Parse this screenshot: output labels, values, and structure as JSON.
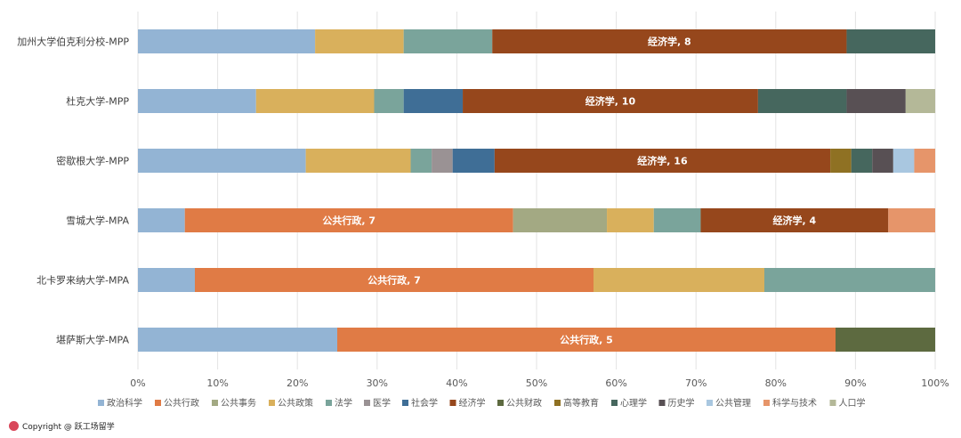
{
  "chart_data": {
    "type": "bar",
    "orientation": "horizontal",
    "stacked": "percent",
    "categories": [
      "加州大学伯克利分校-MPP",
      "杜克大学-MPP",
      "密歇根大学-MPP",
      "雪城大学-MPA",
      "北卡罗来纳大学-MPA",
      "堪萨斯大学-MPA"
    ],
    "xlim": [
      0,
      100
    ],
    "xticks": [
      "0%",
      "10%",
      "20%",
      "30%",
      "40%",
      "50%",
      "60%",
      "70%",
      "80%",
      "90%",
      "100%"
    ],
    "grid": true,
    "legend_placement": "bottom",
    "series": [
      {
        "name": "政治科学",
        "color": "#93b4d4",
        "values": [
          4,
          4,
          8,
          1,
          1,
          2
        ]
      },
      {
        "name": "公共行政",
        "color": "#e07b45",
        "values": [
          0,
          0,
          0,
          7,
          7,
          5
        ]
      },
      {
        "name": "公共事务",
        "color": "#a3a983",
        "values": [
          0,
          0,
          0,
          2,
          0,
          0
        ]
      },
      {
        "name": "公共政策",
        "color": "#d9b05c",
        "values": [
          2,
          4,
          5,
          1,
          3,
          0
        ]
      },
      {
        "name": "法学",
        "color": "#7aa49b",
        "values": [
          2,
          1,
          1,
          1,
          3,
          0
        ]
      },
      {
        "name": "医学",
        "color": "#9a9294",
        "values": [
          0,
          0,
          1,
          0,
          0,
          0
        ]
      },
      {
        "name": "社会学",
        "color": "#3f6e96",
        "values": [
          0,
          2,
          2,
          0,
          0,
          0
        ]
      },
      {
        "name": "经济学",
        "color": "#96471c",
        "values": [
          8,
          10,
          16,
          4,
          0,
          0
        ]
      },
      {
        "name": "公共财政",
        "color": "#5d6a40",
        "values": [
          0,
          0,
          0,
          0,
          0,
          1
        ]
      },
      {
        "name": "高等教育",
        "color": "#8f7123",
        "values": [
          0,
          0,
          1,
          0,
          0,
          0
        ]
      },
      {
        "name": "心理学",
        "color": "#46675e",
        "values": [
          2,
          3,
          1,
          0,
          0,
          0
        ]
      },
      {
        "name": "历史学",
        "color": "#585054",
        "values": [
          0,
          2,
          1,
          0,
          0,
          0
        ]
      },
      {
        "name": "公共管理",
        "color": "#a9c7e0",
        "values": [
          0,
          0,
          1,
          0,
          0,
          0
        ]
      },
      {
        "name": "科学与技术",
        "color": "#e6956a",
        "values": [
          0,
          0,
          1,
          1,
          0,
          0
        ]
      },
      {
        "name": "人口学",
        "color": "#b4b898",
        "values": [
          0,
          1,
          0,
          0,
          0,
          0
        ]
      }
    ],
    "data_labels": [
      {
        "category": 0,
        "series": "经济学",
        "text": "经济学, 8"
      },
      {
        "category": 1,
        "series": "经济学",
        "text": "经济学, 10"
      },
      {
        "category": 2,
        "series": "经济学",
        "text": "经济学, 16"
      },
      {
        "category": 3,
        "series": "公共行政",
        "text": "公共行政, 7"
      },
      {
        "category": 3,
        "series": "经济学",
        "text": "经济学, 4"
      },
      {
        "category": 4,
        "series": "公共行政",
        "text": "公共行政, 7"
      },
      {
        "category": 5,
        "series": "公共行政",
        "text": "公共行政, 5"
      }
    ]
  },
  "footer": {
    "copyright": "Copyright @ 跃工场留学"
  }
}
